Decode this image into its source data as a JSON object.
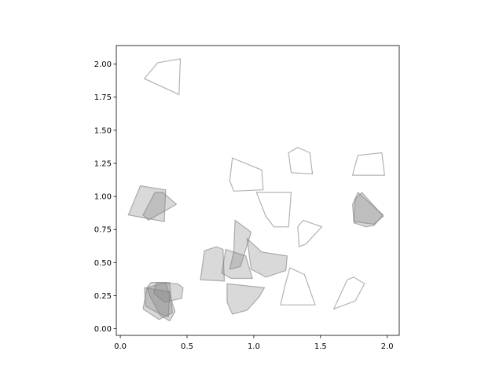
{
  "chart_data": {
    "type": "scatter",
    "title": "",
    "xlabel": "",
    "ylabel": "",
    "xlim": [
      -0.03,
      2.09
    ],
    "ylim": [
      -0.05,
      2.14
    ],
    "grid": false,
    "x_ticks": [
      0.0,
      0.5,
      1.0,
      1.5,
      2.0
    ],
    "y_ticks": [
      0.0,
      0.25,
      0.5,
      0.75,
      1.0,
      1.25,
      1.5,
      1.75,
      2.0
    ],
    "x_tick_labels": [
      "0.0",
      "0.5",
      "1.0",
      "1.5",
      "2.0"
    ],
    "y_tick_labels": [
      "0.00",
      "0.25",
      "0.50",
      "0.75",
      "1.00",
      "1.25",
      "1.50",
      "1.75",
      "2.00"
    ],
    "shapes_filled": [
      [
        [
          0.06,
          0.86
        ],
        [
          0.15,
          1.08
        ],
        [
          0.34,
          1.05
        ],
        [
          0.33,
          0.81
        ]
      ],
      [
        [
          0.17,
          0.86
        ],
        [
          0.26,
          1.03
        ],
        [
          0.32,
          1.03
        ],
        [
          0.42,
          0.94
        ],
        [
          0.21,
          0.82
        ]
      ],
      [
        [
          0.6,
          0.37
        ],
        [
          0.63,
          0.59
        ],
        [
          0.72,
          0.62
        ],
        [
          0.77,
          0.6
        ],
        [
          0.78,
          0.36
        ]
      ],
      [
        [
          0.86,
          0.82
        ],
        [
          0.85,
          0.58
        ],
        [
          0.82,
          0.45
        ],
        [
          0.9,
          0.47
        ],
        [
          0.98,
          0.73
        ]
      ],
      [
        [
          0.79,
          0.6
        ],
        [
          0.76,
          0.42
        ],
        [
          0.83,
          0.38
        ],
        [
          0.99,
          0.38
        ],
        [
          0.94,
          0.55
        ]
      ],
      [
        [
          0.95,
          0.68
        ],
        [
          1.06,
          0.58
        ],
        [
          1.25,
          0.55
        ],
        [
          1.24,
          0.44
        ],
        [
          1.09,
          0.39
        ],
        [
          0.98,
          0.45
        ]
      ],
      [
        [
          0.8,
          0.34
        ],
        [
          0.8,
          0.2
        ],
        [
          0.84,
          0.11
        ],
        [
          0.95,
          0.14
        ],
        [
          1.04,
          0.24
        ],
        [
          1.08,
          0.31
        ]
      ],
      [
        [
          0.2,
          0.31
        ],
        [
          0.22,
          0.25
        ],
        [
          0.3,
          0.1
        ],
        [
          0.37,
          0.06
        ],
        [
          0.41,
          0.13
        ],
        [
          0.34,
          0.35
        ]
      ],
      [
        [
          0.18,
          0.31
        ],
        [
          0.19,
          0.17
        ],
        [
          0.28,
          0.12
        ],
        [
          0.36,
          0.09
        ],
        [
          0.37,
          0.28
        ]
      ],
      [
        [
          0.2,
          0.31
        ],
        [
          0.23,
          0.35
        ],
        [
          0.37,
          0.35
        ],
        [
          0.39,
          0.12
        ],
        [
          0.29,
          0.07
        ],
        [
          0.17,
          0.15
        ]
      ],
      [
        [
          0.27,
          0.35
        ],
        [
          0.25,
          0.27
        ],
        [
          0.33,
          0.2
        ],
        [
          0.46,
          0.23
        ],
        [
          0.47,
          0.31
        ],
        [
          0.43,
          0.34
        ]
      ],
      [
        [
          1.75,
          0.81
        ],
        [
          1.9,
          0.79
        ],
        [
          1.97,
          0.85
        ],
        [
          1.81,
          1.03
        ],
        [
          1.76,
          0.98
        ]
      ],
      [
        [
          1.78,
          1.03
        ],
        [
          1.74,
          0.94
        ],
        [
          1.75,
          0.8
        ],
        [
          1.84,
          0.77
        ],
        [
          1.9,
          0.78
        ],
        [
          1.97,
          0.86
        ]
      ]
    ],
    "shapes_outline": [
      [
        [
          0.18,
          1.89
        ],
        [
          0.28,
          2.01
        ],
        [
          0.45,
          2.04
        ],
        [
          0.44,
          1.77
        ]
      ],
      [
        [
          0.84,
          1.29
        ],
        [
          0.82,
          1.12
        ],
        [
          0.85,
          1.04
        ],
        [
          1.07,
          1.05
        ],
        [
          1.06,
          1.2
        ]
      ],
      [
        [
          1.02,
          1.03
        ],
        [
          1.09,
          0.85
        ],
        [
          1.15,
          0.77
        ],
        [
          1.26,
          0.77
        ],
        [
          1.28,
          1.03
        ]
      ],
      [
        [
          1.26,
          1.33
        ],
        [
          1.33,
          1.37
        ],
        [
          1.42,
          1.33
        ],
        [
          1.44,
          1.17
        ],
        [
          1.28,
          1.18
        ]
      ],
      [
        [
          1.75,
          1.2
        ],
        [
          1.78,
          1.31
        ],
        [
          1.96,
          1.33
        ],
        [
          1.98,
          1.16
        ],
        [
          1.74,
          1.16
        ]
      ],
      [
        [
          1.33,
          0.77
        ],
        [
          1.37,
          0.82
        ],
        [
          1.51,
          0.77
        ],
        [
          1.39,
          0.64
        ],
        [
          1.34,
          0.62
        ]
      ],
      [
        [
          1.2,
          0.18
        ],
        [
          1.23,
          0.31
        ],
        [
          1.27,
          0.46
        ],
        [
          1.38,
          0.41
        ],
        [
          1.46,
          0.18
        ]
      ],
      [
        [
          1.6,
          0.15
        ],
        [
          1.7,
          0.37
        ],
        [
          1.75,
          0.39
        ],
        [
          1.83,
          0.34
        ],
        [
          1.76,
          0.21
        ]
      ]
    ],
    "fill_color": "#808080",
    "fill_opacity": 0.3,
    "edge_color": "#808080",
    "edge_opacity": 0.6
  }
}
